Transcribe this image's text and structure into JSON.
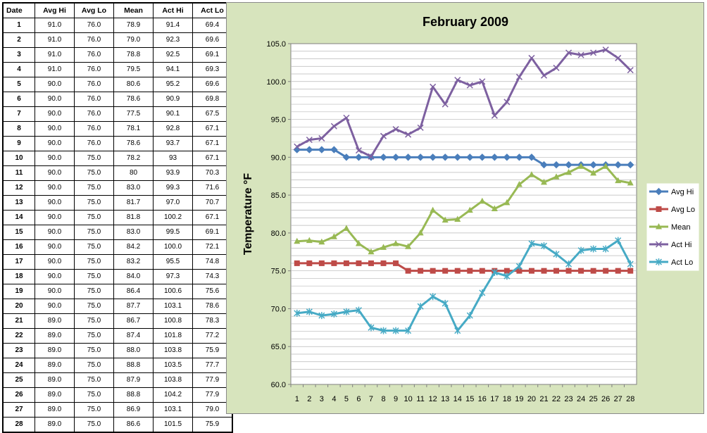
{
  "table": {
    "headers": [
      "Date",
      "Avg Hi",
      "Avg Lo",
      "Mean",
      "Act Hi",
      "Act Lo"
    ],
    "rows": [
      [
        "1",
        "91.0",
        "76.0",
        "78.9",
        "91.4",
        "69.4"
      ],
      [
        "2",
        "91.0",
        "76.0",
        "79.0",
        "92.3",
        "69.6"
      ],
      [
        "3",
        "91.0",
        "76.0",
        "78.8",
        "92.5",
        "69.1"
      ],
      [
        "4",
        "91.0",
        "76.0",
        "79.5",
        "94.1",
        "69.3"
      ],
      [
        "5",
        "90.0",
        "76.0",
        "80.6",
        "95.2",
        "69.6"
      ],
      [
        "6",
        "90.0",
        "76.0",
        "78.6",
        "90.9",
        "69.8"
      ],
      [
        "7",
        "90.0",
        "76.0",
        "77.5",
        "90.1",
        "67.5"
      ],
      [
        "8",
        "90.0",
        "76.0",
        "78.1",
        "92.8",
        "67.1"
      ],
      [
        "9",
        "90.0",
        "76.0",
        "78.6",
        "93.7",
        "67.1"
      ],
      [
        "10",
        "90.0",
        "75.0",
        "78.2",
        "93",
        "67.1"
      ],
      [
        "11",
        "90.0",
        "75.0",
        "80",
        "93.9",
        "70.3"
      ],
      [
        "12",
        "90.0",
        "75.0",
        "83.0",
        "99.3",
        "71.6"
      ],
      [
        "13",
        "90.0",
        "75.0",
        "81.7",
        "97.0",
        "70.7"
      ],
      [
        "14",
        "90.0",
        "75.0",
        "81.8",
        "100.2",
        "67.1"
      ],
      [
        "15",
        "90.0",
        "75.0",
        "83.0",
        "99.5",
        "69.1"
      ],
      [
        "16",
        "90.0",
        "75.0",
        "84.2",
        "100.0",
        "72.1"
      ],
      [
        "17",
        "90.0",
        "75.0",
        "83.2",
        "95.5",
        "74.8"
      ],
      [
        "18",
        "90.0",
        "75.0",
        "84.0",
        "97.3",
        "74.3"
      ],
      [
        "19",
        "90.0",
        "75.0",
        "86.4",
        "100.6",
        "75.6"
      ],
      [
        "20",
        "90.0",
        "75.0",
        "87.7",
        "103.1",
        "78.6"
      ],
      [
        "21",
        "89.0",
        "75.0",
        "86.7",
        "100.8",
        "78.3"
      ],
      [
        "22",
        "89.0",
        "75.0",
        "87.4",
        "101.8",
        "77.2"
      ],
      [
        "23",
        "89.0",
        "75.0",
        "88.0",
        "103.8",
        "75.9"
      ],
      [
        "24",
        "89.0",
        "75.0",
        "88.8",
        "103.5",
        "77.7"
      ],
      [
        "25",
        "89.0",
        "75.0",
        "87.9",
        "103.8",
        "77.9"
      ],
      [
        "26",
        "89.0",
        "75.0",
        "88.8",
        "104.2",
        "77.9"
      ],
      [
        "27",
        "89.0",
        "75.0",
        "86.9",
        "103.1",
        "79.0"
      ],
      [
        "28",
        "89.0",
        "75.0",
        "86.6",
        "101.5",
        "75.9"
      ]
    ]
  },
  "chart_data": {
    "type": "line",
    "title": "February 2009",
    "xlabel": "",
    "ylabel": "Temperature °F",
    "x": [
      1,
      2,
      3,
      4,
      5,
      6,
      7,
      8,
      9,
      10,
      11,
      12,
      13,
      14,
      15,
      16,
      17,
      18,
      19,
      20,
      21,
      22,
      23,
      24,
      25,
      26,
      27,
      28
    ],
    "ylim": [
      60,
      105
    ],
    "yticks": [
      "60.0",
      "65.0",
      "70.0",
      "75.0",
      "80.0",
      "85.0",
      "90.0",
      "95.0",
      "100.0",
      "105.0"
    ],
    "grid": true,
    "legend_position": "right",
    "series": [
      {
        "name": "Avg Hi",
        "color": "#4a7ebb",
        "marker": "diamond",
        "values": [
          91,
          91,
          91,
          91,
          90,
          90,
          90,
          90,
          90,
          90,
          90,
          90,
          90,
          90,
          90,
          90,
          90,
          90,
          90,
          90,
          89,
          89,
          89,
          89,
          89,
          89,
          89,
          89
        ]
      },
      {
        "name": "Avg Lo",
        "color": "#be4b48",
        "marker": "square",
        "values": [
          76,
          76,
          76,
          76,
          76,
          76,
          76,
          76,
          76,
          75,
          75,
          75,
          75,
          75,
          75,
          75,
          75,
          75,
          75,
          75,
          75,
          75,
          75,
          75,
          75,
          75,
          75,
          75
        ]
      },
      {
        "name": "Mean",
        "color": "#98b954",
        "marker": "triangle",
        "values": [
          78.9,
          79.0,
          78.8,
          79.5,
          80.6,
          78.6,
          77.5,
          78.1,
          78.6,
          78.2,
          80,
          83.0,
          81.7,
          81.8,
          83.0,
          84.2,
          83.2,
          84.0,
          86.4,
          87.7,
          86.7,
          87.4,
          88.0,
          88.8,
          87.9,
          88.8,
          86.9,
          86.6
        ]
      },
      {
        "name": "Act Hi",
        "color": "#7d60a0",
        "marker": "x",
        "values": [
          91.4,
          92.3,
          92.5,
          94.1,
          95.2,
          90.9,
          90.1,
          92.8,
          93.7,
          93,
          93.9,
          99.3,
          97.0,
          100.2,
          99.5,
          100.0,
          95.5,
          97.3,
          100.6,
          103.1,
          100.8,
          101.8,
          103.8,
          103.5,
          103.8,
          104.2,
          103.1,
          101.5
        ]
      },
      {
        "name": "Act Lo",
        "color": "#46aac5",
        "marker": "star",
        "values": [
          69.4,
          69.6,
          69.1,
          69.3,
          69.6,
          69.8,
          67.5,
          67.1,
          67.1,
          67.1,
          70.3,
          71.6,
          70.7,
          67.1,
          69.1,
          72.1,
          74.8,
          74.3,
          75.6,
          78.6,
          78.3,
          77.2,
          75.9,
          77.7,
          77.9,
          77.9,
          79.0,
          75.9
        ]
      }
    ]
  }
}
